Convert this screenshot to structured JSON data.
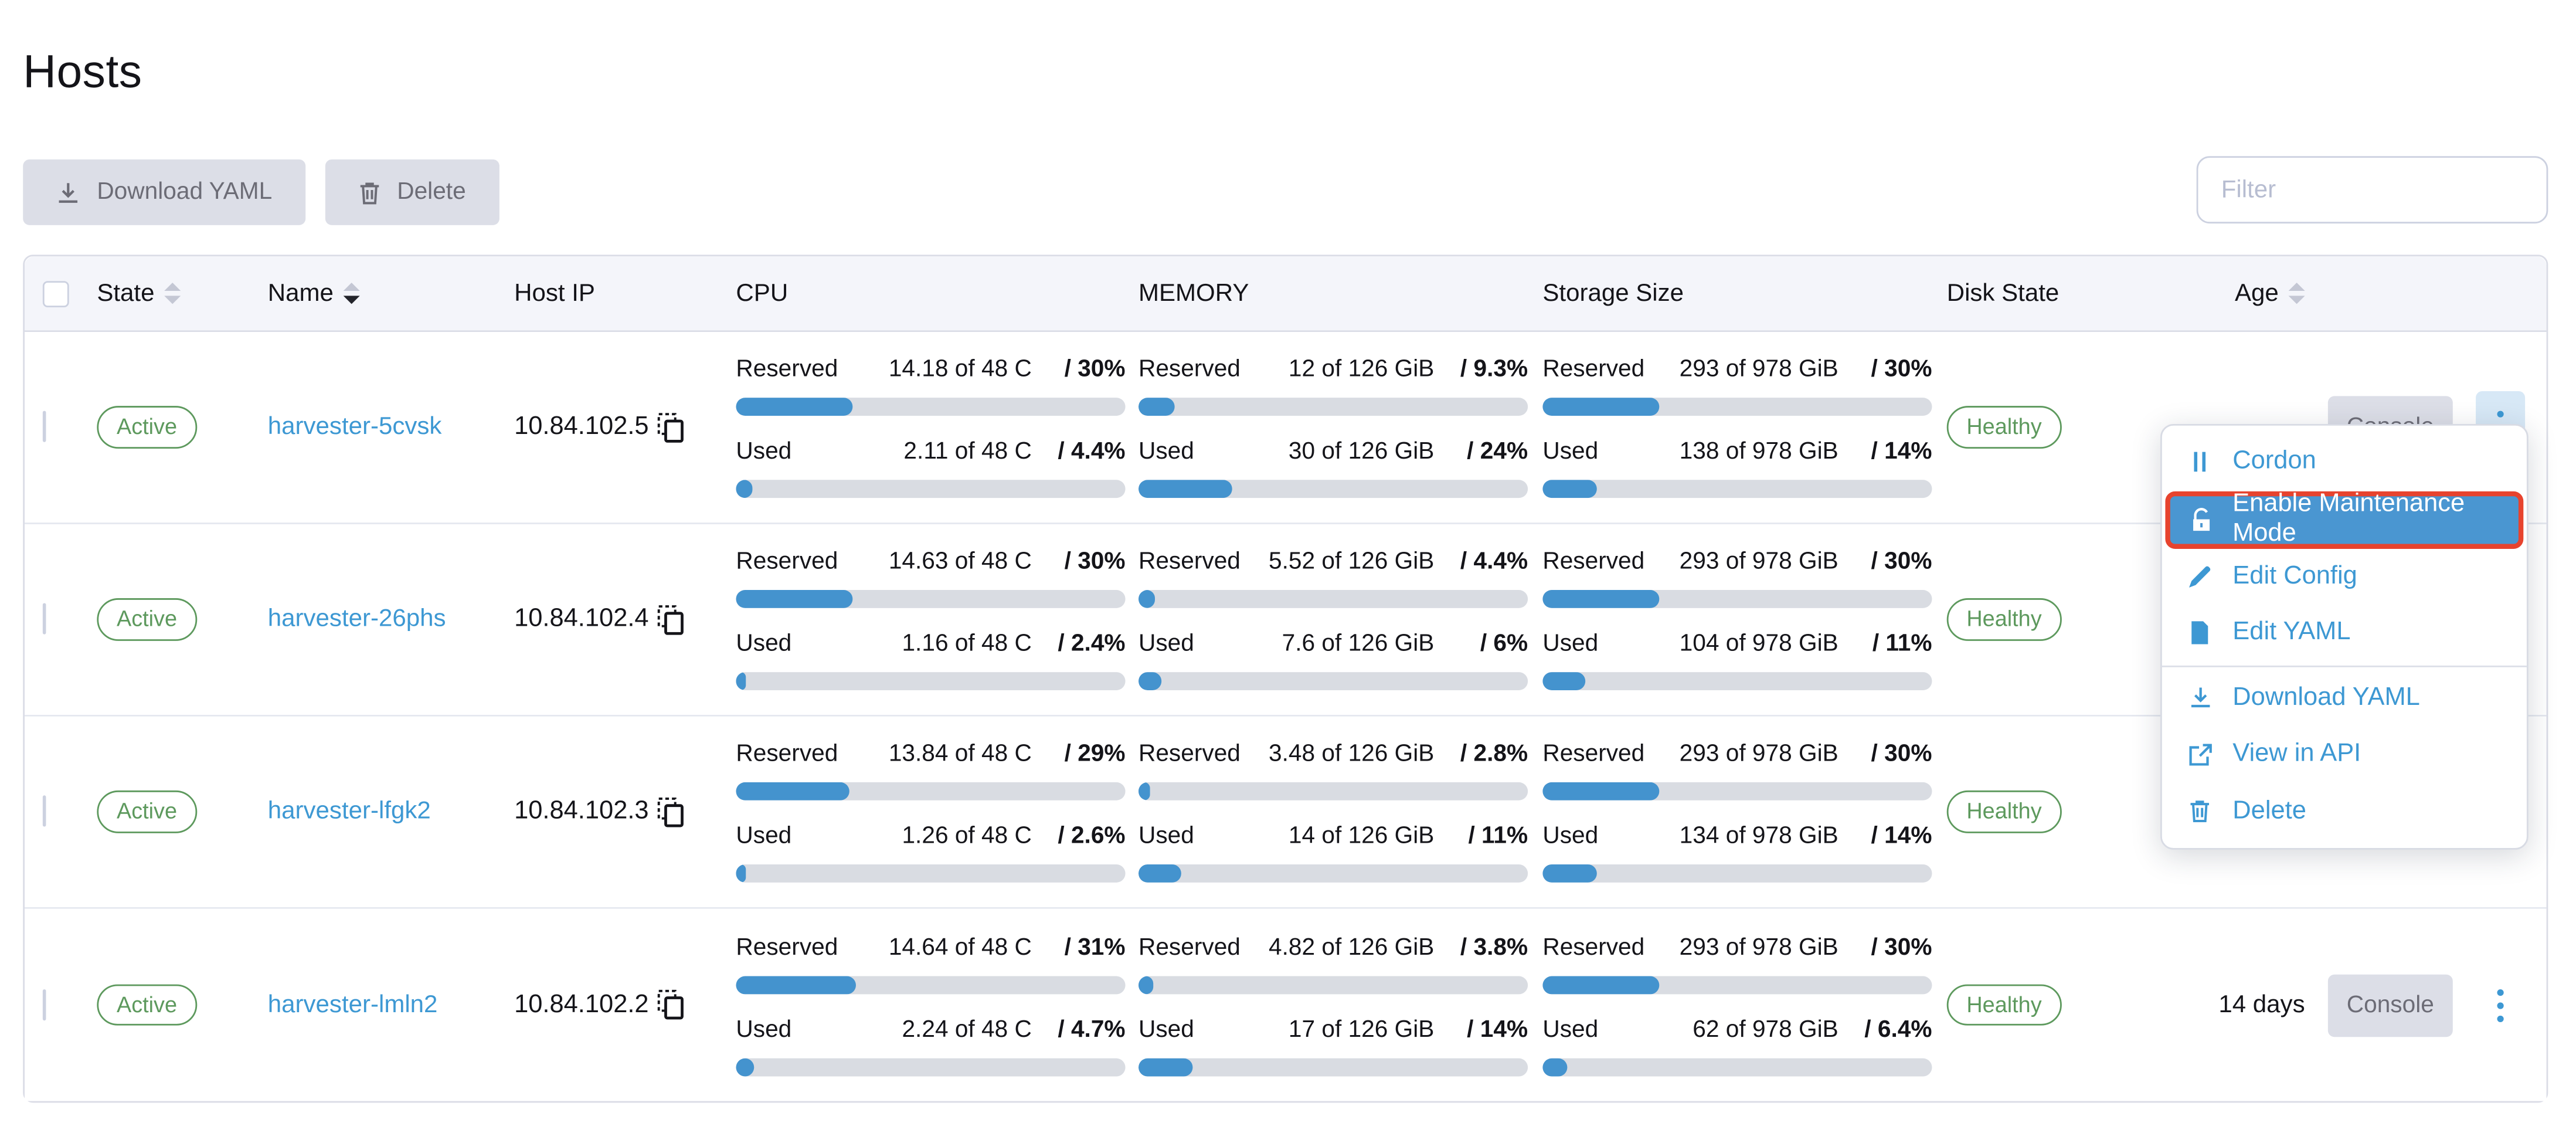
{
  "page": {
    "title": "Hosts"
  },
  "toolbar": {
    "download_yaml_label": "Download YAML",
    "delete_label": "Delete",
    "filter_placeholder": "Filter"
  },
  "colors": {
    "accent_blue": "#3d98d3",
    "bar_fill": "#4493ce",
    "badge_green": "#5d995d",
    "highlight_red_border": "#e7432e",
    "button_gray": "#dcdee7"
  },
  "table": {
    "headers": {
      "state": "State",
      "name": "Name",
      "host_ip": "Host IP",
      "cpu": "CPU",
      "memory": "MEMORY",
      "storage": "Storage Size",
      "disk_state": "Disk State",
      "age": "Age"
    },
    "meter_labels": {
      "reserved": "Reserved",
      "used": "Used"
    },
    "console_label": "Console",
    "rows": [
      {
        "state": "Active",
        "name": "harvester-5cvsk",
        "host_ip": "10.84.102.5",
        "cpu": {
          "reserved": {
            "value": "14.18 of 48 C",
            "percent": "/ 30%",
            "pct": 30
          },
          "used": {
            "value": "2.11 of 48 C",
            "percent": "/ 4.4%",
            "pct": 4.4
          }
        },
        "memory": {
          "reserved": {
            "value": "12 of 126 GiB",
            "percent": "/ 9.3%",
            "pct": 9.3
          },
          "used": {
            "value": "30 of 126 GiB",
            "percent": "/ 24%",
            "pct": 24
          }
        },
        "storage": {
          "reserved": {
            "value": "293 of 978 GiB",
            "percent": "/ 30%",
            "pct": 30
          },
          "used": {
            "value": "138 of 978 GiB",
            "percent": "/ 14%",
            "pct": 14
          }
        },
        "disk_state": "Healthy",
        "age": ""
      },
      {
        "state": "Active",
        "name": "harvester-26phs",
        "host_ip": "10.84.102.4",
        "cpu": {
          "reserved": {
            "value": "14.63 of 48 C",
            "percent": "/ 30%",
            "pct": 30
          },
          "used": {
            "value": "1.16 of 48 C",
            "percent": "/ 2.4%",
            "pct": 2.4
          }
        },
        "memory": {
          "reserved": {
            "value": "5.52 of 126 GiB",
            "percent": "/ 4.4%",
            "pct": 4.4
          },
          "used": {
            "value": "7.6 of 126 GiB",
            "percent": "/ 6%",
            "pct": 6
          }
        },
        "storage": {
          "reserved": {
            "value": "293 of 978 GiB",
            "percent": "/ 30%",
            "pct": 30
          },
          "used": {
            "value": "104 of 978 GiB",
            "percent": "/ 11%",
            "pct": 11
          }
        },
        "disk_state": "Healthy",
        "age": ""
      },
      {
        "state": "Active",
        "name": "harvester-lfgk2",
        "host_ip": "10.84.102.3",
        "cpu": {
          "reserved": {
            "value": "13.84 of 48 C",
            "percent": "/ 29%",
            "pct": 29
          },
          "used": {
            "value": "1.26 of 48 C",
            "percent": "/ 2.6%",
            "pct": 2.6
          }
        },
        "memory": {
          "reserved": {
            "value": "3.48 of 126 GiB",
            "percent": "/ 2.8%",
            "pct": 2.8
          },
          "used": {
            "value": "14 of 126 GiB",
            "percent": "/ 11%",
            "pct": 11
          }
        },
        "storage": {
          "reserved": {
            "value": "293 of 978 GiB",
            "percent": "/ 30%",
            "pct": 30
          },
          "used": {
            "value": "134 of 978 GiB",
            "percent": "/ 14%",
            "pct": 14
          }
        },
        "disk_state": "Healthy",
        "age": ""
      },
      {
        "state": "Active",
        "name": "harvester-lmln2",
        "host_ip": "10.84.102.2",
        "cpu": {
          "reserved": {
            "value": "14.64 of 48 C",
            "percent": "/ 31%",
            "pct": 31
          },
          "used": {
            "value": "2.24 of 48 C",
            "percent": "/ 4.7%",
            "pct": 4.7
          }
        },
        "memory": {
          "reserved": {
            "value": "4.82 of 126 GiB",
            "percent": "/ 3.8%",
            "pct": 3.8
          },
          "used": {
            "value": "17 of 126 GiB",
            "percent": "/ 14%",
            "pct": 14
          }
        },
        "storage": {
          "reserved": {
            "value": "293 of 978 GiB",
            "percent": "/ 30%",
            "pct": 30
          },
          "used": {
            "value": "62 of 978 GiB",
            "percent": "/ 6.4%",
            "pct": 6.4
          }
        },
        "disk_state": "Healthy",
        "age": "14 days"
      }
    ]
  },
  "context_menu": {
    "items": [
      {
        "label": "Cordon",
        "icon": "pause-icon"
      },
      {
        "label": "Enable Maintenance Mode",
        "icon": "lock-icon",
        "highlighted": true
      },
      {
        "label": "Edit Config",
        "icon": "pencil-icon"
      },
      {
        "label": "Edit YAML",
        "icon": "file-icon"
      },
      {
        "label": "Download YAML",
        "icon": "download-icon"
      },
      {
        "label": "View in API",
        "icon": "external-link-icon"
      },
      {
        "label": "Delete",
        "icon": "trash-icon"
      }
    ]
  }
}
